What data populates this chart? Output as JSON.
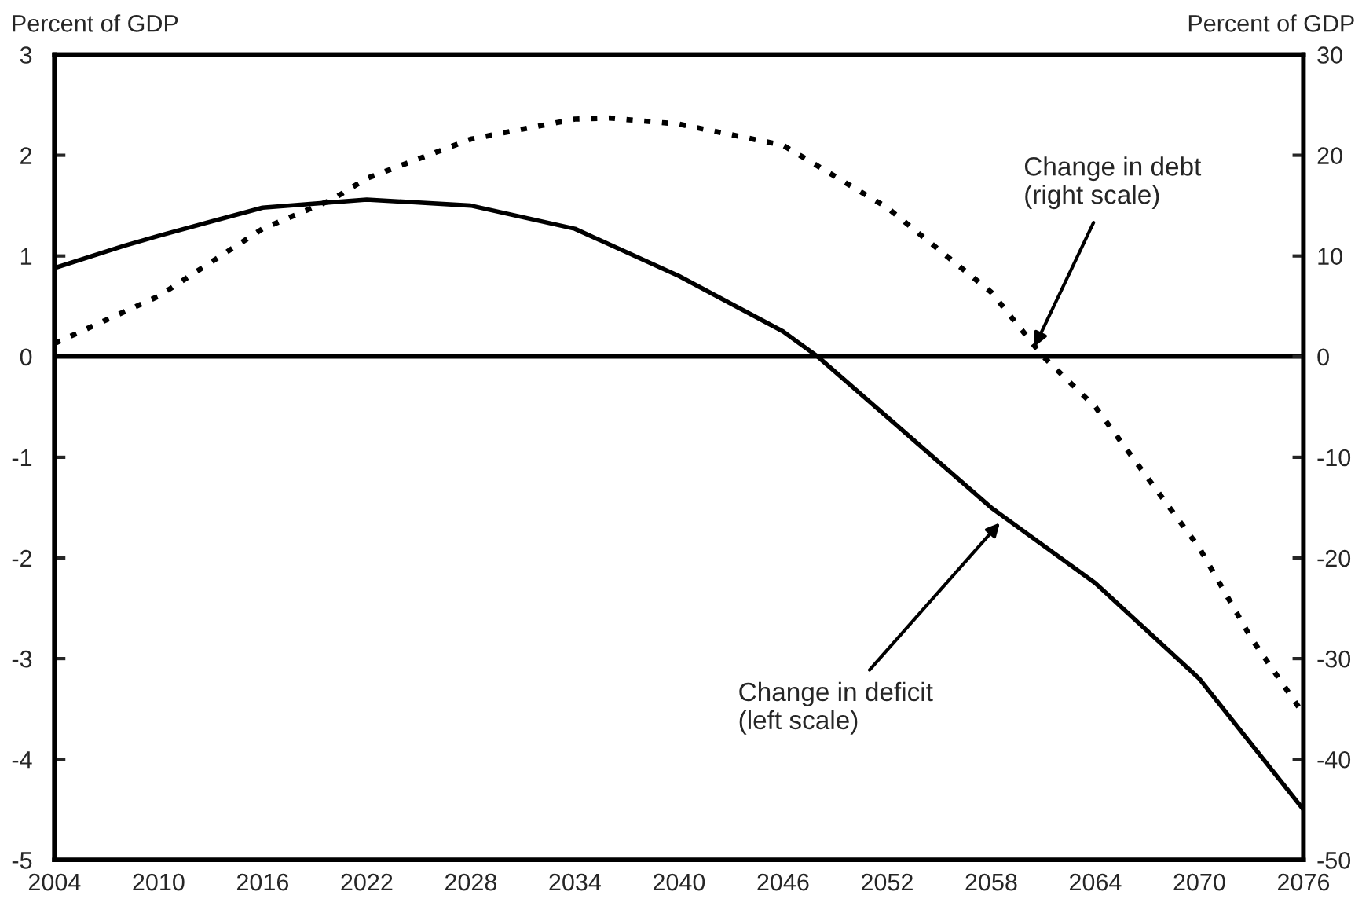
{
  "chart_data": {
    "type": "line",
    "ylabel": "Percent of GDP",
    "y2label": "Percent of GDP",
    "xlim": [
      2004,
      2076
    ],
    "xticks": [
      2004,
      2010,
      2016,
      2022,
      2028,
      2034,
      2040,
      2046,
      2052,
      2058,
      2064,
      2070,
      2076
    ],
    "ylim": [
      -5,
      3
    ],
    "yticks": [
      -5,
      -4,
      -3,
      -2,
      -1,
      0,
      1,
      2,
      3
    ],
    "y2lim": [
      -50,
      30
    ],
    "y2ticks": [
      -50,
      -40,
      -30,
      -20,
      -10,
      0,
      10,
      20,
      30
    ],
    "grid": false,
    "legend": false,
    "marker": "none",
    "ref_lines": [
      {
        "axis": "y",
        "value": 0,
        "color": "#000000",
        "line_style": "solid"
      }
    ],
    "series": [
      {
        "color": "#000000",
        "line_style": "solid",
        "x": [
          2004,
          2008,
          2010,
          2016,
          2022,
          2028,
          2034,
          2040,
          2046,
          2048,
          2052,
          2058,
          2064,
          2070,
          2076
        ],
        "values": [
          0.88,
          1.1,
          1.2,
          1.48,
          1.56,
          1.5,
          1.27,
          0.8,
          0.25,
          0,
          -0.6,
          -1.5,
          -2.25,
          -3.2,
          -4.5
        ]
      },
      {
        "color": "#000000",
        "line_style": "dotted",
        "axis": "y2",
        "x": [
          2004,
          2010,
          2016,
          2020,
          2022,
          2028,
          2034,
          2036,
          2040,
          2046,
          2052,
          2058,
          2061,
          2064,
          2070,
          2073,
          2076
        ],
        "values": [
          1.3,
          6,
          12.7,
          15.6,
          17.7,
          21.6,
          23.6,
          23.7,
          23.1,
          21,
          14.8,
          6.4,
          0,
          -5,
          -19,
          -28,
          -35.5
        ]
      }
    ],
    "annotations": [
      {
        "text": "Change in deficit\n(left scale)",
        "x": 2058.5,
        "y": -1.65
      },
      {
        "text": "Change in debt\n(right scale)",
        "x": 2060.5,
        "y": 0.1
      }
    ]
  }
}
